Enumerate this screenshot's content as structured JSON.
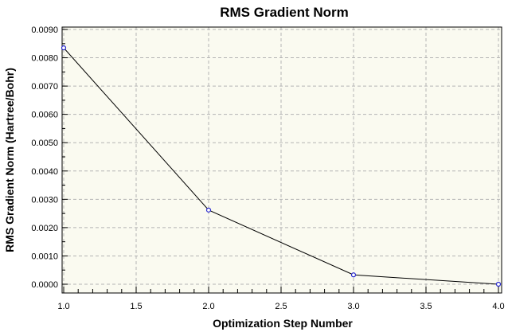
{
  "chart_data": {
    "type": "line",
    "title": "RMS Gradient Norm",
    "xlabel": "Optimization Step Number",
    "ylabel": "RMS Gradient Norm (Hartree/Bohr)",
    "x": [
      1,
      2,
      3,
      4
    ],
    "series": [
      {
        "values": [
          0.00835,
          0.00262,
          0.00033,
          0.0
        ]
      }
    ],
    "xlim": [
      1.0,
      4.0
    ],
    "ylim": [
      0.0,
      0.009
    ],
    "xticks": [
      "1.0",
      "1.5",
      "2.0",
      "2.5",
      "3.0",
      "3.5",
      "4.0"
    ],
    "yticks": [
      "0.0000",
      "0.0010",
      "0.0020",
      "0.0030",
      "0.0040",
      "0.0050",
      "0.0060",
      "0.0070",
      "0.0080",
      "0.0090"
    ],
    "grid": true,
    "colors": {
      "plot_background": "#fafaf0",
      "line": "#000000",
      "marker": "#2a2acd",
      "grid": "#b4b4b4"
    }
  }
}
